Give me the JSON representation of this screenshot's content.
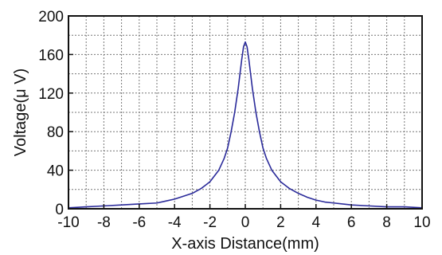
{
  "chart_data": {
    "type": "line",
    "title": "",
    "xlabel": "X-axis Distance(mm)",
    "ylabel": "Voltage(μ V)",
    "xlim": [
      -10,
      10
    ],
    "ylim": [
      0,
      200
    ],
    "x_ticks": [
      -10,
      -8,
      -6,
      -4,
      -2,
      0,
      2,
      4,
      6,
      8,
      10
    ],
    "x_tick_labels": [
      "-10",
      "-8",
      "-6",
      "-4",
      "-2",
      "0",
      "2",
      "4",
      "6",
      "8",
      "10"
    ],
    "y_ticks": [
      0,
      40,
      80,
      120,
      160,
      200
    ],
    "y_tick_labels": [
      "0",
      "40",
      "80",
      "120",
      "160",
      "200"
    ],
    "grid": true,
    "grid_style": "dotted",
    "legend": false,
    "series": [
      {
        "color": "#2a2a9a",
        "x": [
          -10,
          -9,
          -8,
          -7,
          -6,
          -5,
          -4.5,
          -4,
          -3.5,
          -3,
          -2.5,
          -2,
          -1.5,
          -1.2,
          -1,
          -0.8,
          -0.6,
          -0.4,
          -0.2,
          -0.1,
          0,
          0.1,
          0.2,
          0.4,
          0.6,
          0.8,
          1,
          1.2,
          1.5,
          2,
          2.5,
          3,
          3.5,
          4,
          4.5,
          5,
          6,
          7,
          8,
          9,
          10
        ],
        "y": [
          1,
          2,
          3,
          4,
          5,
          6,
          8,
          10,
          13,
          16,
          21,
          28,
          40,
          52,
          63,
          80,
          100,
          125,
          155,
          168,
          173,
          168,
          155,
          125,
          100,
          80,
          63,
          52,
          40,
          28,
          21,
          16,
          12,
          9,
          7,
          6,
          4,
          3,
          2,
          2,
          1
        ]
      }
    ]
  }
}
